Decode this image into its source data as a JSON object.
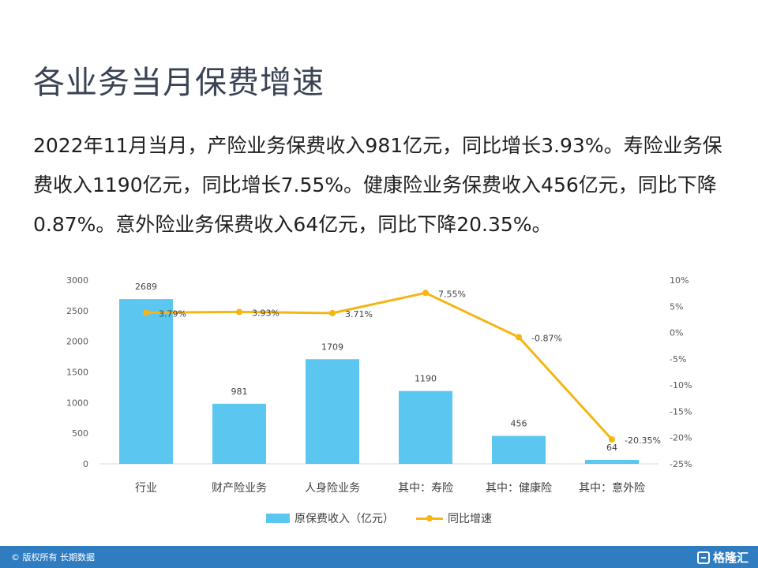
{
  "title": "各业务当月保费增速",
  "paragraph": "2022年11月当月，产险业务保费收入981亿元，同比增长3.93%。寿险业务保费收入1190亿元，同比增长7.55%。健康险业务保费收入456亿元，同比下降0.87%。意外险业务保费收入64亿元，同比下降20.35%。",
  "footer": {
    "copyright": "© 版权所有 长期数据",
    "logo": "格隆汇",
    "logo_icon": "gelonghui-logo-icon",
    "background": "#2f7cc0"
  },
  "chart_data": {
    "type": "bar",
    "categories": [
      "行业",
      "财产险业务",
      "人身险业务",
      "其中：寿险",
      "其中：健康险",
      "其中：意外险"
    ],
    "series": [
      {
        "name": "原保费收入（亿元）",
        "type": "bar",
        "axis": "left",
        "color": "#5bc6f0",
        "values": [
          2689,
          981,
          1709,
          1190,
          456,
          64
        ],
        "labels": [
          "2689",
          "981",
          "1709",
          "1190",
          "456",
          "64"
        ]
      },
      {
        "name": "同比增速",
        "type": "line",
        "axis": "right",
        "color": "#f5b614",
        "values": [
          3.79,
          3.93,
          3.71,
          7.55,
          -0.87,
          -20.35
        ],
        "labels": [
          "3.79%",
          "3.93%",
          "3.71%",
          "7.55%",
          "-0.87%",
          "-20.35%"
        ]
      }
    ],
    "y_left": {
      "ylim": [
        0,
        3000
      ],
      "ticks": [
        "0",
        "500",
        "1000",
        "1500",
        "2000",
        "2500",
        "3000"
      ]
    },
    "y_right": {
      "ylim": [
        -25,
        10
      ],
      "ticks": [
        "10%",
        "5%",
        "0%",
        "-5%",
        "-10%",
        "-15%",
        "-20%",
        "-25%"
      ]
    },
    "grid": false,
    "legend_position": "bottom"
  }
}
